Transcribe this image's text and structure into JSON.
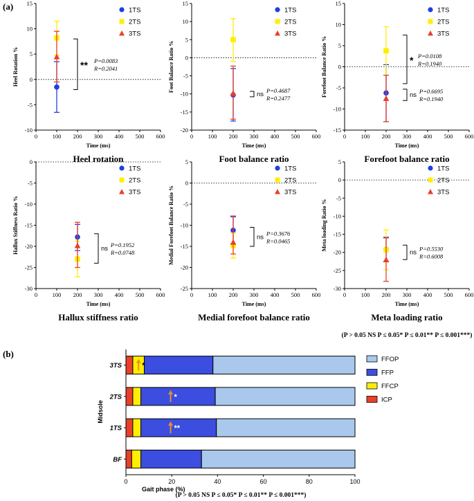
{
  "panel_a_label": "(a)",
  "panel_b_label": "(b)",
  "legend_series": [
    "1TS",
    "2TS",
    "3TS"
  ],
  "series_colors": {
    "1TS": "#1f3fe0",
    "2TS": "#ffee00",
    "3TS": "#e8402a"
  },
  "xaxis_title": "Time (ms)",
  "sig_note": "(P > 0.05 NS P ≤ 0.05* P ≤ 0.01** P ≤ 0.001***)",
  "chart_data": [
    {
      "type": "scatter",
      "title": "Heel rotation",
      "ylabel": "Heel Rotation  %",
      "xlabel": "Time (ms)",
      "xlim": [
        0,
        600
      ],
      "xticks": [
        0,
        100,
        200,
        300,
        400,
        500,
        600
      ],
      "ylim": [
        -10,
        15
      ],
      "yticks": [
        -10,
        -5,
        0,
        5,
        10,
        15
      ],
      "x": 100,
      "series": [
        {
          "name": "1TS",
          "mean": -1.5,
          "sd_low": -6.5,
          "sd_high": 3.5
        },
        {
          "name": "2TS",
          "mean": 8.2,
          "sd_low": 4.8,
          "sd_high": 11.5
        },
        {
          "name": "3TS",
          "mean": 4.5,
          "sd_low": -0.5,
          "sd_high": 9.5
        }
      ],
      "annotations": [
        {
          "label": "**",
          "from": -2,
          "to": 8,
          "p": "P=0.0083",
          "r": "R=0.2041"
        }
      ]
    },
    {
      "type": "scatter",
      "title": "Foot balance ratio",
      "ylabel": "Foot Balance Ratio %",
      "xlabel": "Time (ms)",
      "xlim": [
        0,
        600
      ],
      "xticks": [
        0,
        100,
        200,
        300,
        400,
        500,
        600
      ],
      "ylim": [
        -20,
        15
      ],
      "yticks": [
        -20,
        -15,
        -10,
        -5,
        0,
        5,
        10,
        15
      ],
      "x": 200,
      "series": [
        {
          "name": "1TS",
          "mean": -10.3,
          "sd_low": -17.5,
          "sd_high": -3
        },
        {
          "name": "2TS",
          "mean": 5,
          "sd_low": -1,
          "sd_high": 10.8
        },
        {
          "name": "3TS",
          "mean": -9.8,
          "sd_low": -17,
          "sd_high": -2.3
        }
      ],
      "annotations": [
        {
          "label": "ns",
          "from": -10.8,
          "to": -9.3,
          "p": "P=0.4687",
          "r": "R=0.2477"
        }
      ]
    },
    {
      "type": "scatter",
      "title": "Forefoot balance ratio",
      "ylabel": "Forefoot Balance Ratio %",
      "xlabel": "Time (ms)",
      "xlim": [
        0,
        600
      ],
      "xticks": [
        0,
        100,
        200,
        300,
        400,
        500,
        600
      ],
      "ylim": [
        -15,
        15
      ],
      "yticks": [
        -15,
        -10,
        -5,
        0,
        5,
        10,
        15
      ],
      "x": 200,
      "series": [
        {
          "name": "1TS",
          "mean": -6.2,
          "sd_low": -13,
          "sd_high": 0.5
        },
        {
          "name": "2TS",
          "mean": 3.8,
          "sd_low": -2,
          "sd_high": 9.5
        },
        {
          "name": "3TS",
          "mean": -7.5,
          "sd_low": -13,
          "sd_high": -2
        }
      ],
      "annotations": [
        {
          "label": "*",
          "from": -4,
          "to": 7.5,
          "p": "P=0.0108",
          "r": "R=0.1940"
        },
        {
          "label": "ns",
          "from": -8,
          "to": -5.3,
          "p": "P=0.6695",
          "r": "R=0.1940"
        }
      ]
    },
    {
      "type": "scatter",
      "title": "Hallux stiffness ratio",
      "ylabel": "Hallux Stiffness Ratio %",
      "xlabel": "Time (ms)",
      "xlim": [
        0,
        600
      ],
      "xticks": [
        0,
        100,
        200,
        300,
        400,
        500,
        600
      ],
      "ylim": [
        -30,
        0
      ],
      "yticks": [
        -30,
        -25,
        -20,
        -15,
        -10,
        -5,
        0
      ],
      "x": 200,
      "series": [
        {
          "name": "1TS",
          "mean": -17.8,
          "sd_low": -21,
          "sd_high": -14.8
        },
        {
          "name": "2TS",
          "mean": -23,
          "sd_low": -27.2,
          "sd_high": -18.8
        },
        {
          "name": "3TS",
          "mean": -19.8,
          "sd_low": -25,
          "sd_high": -14.3
        }
      ],
      "annotations": [
        {
          "label": "ns",
          "from": -24,
          "to": -17,
          "p": "P=0.1952",
          "r": "R=0.0748"
        }
      ]
    },
    {
      "type": "scatter",
      "title": "Medial forefoot balance ratio",
      "ylabel": "Medial Forefoot Balance Ratio %",
      "xlabel": "Time (ms)",
      "xlim": [
        0,
        600
      ],
      "xticks": [
        0,
        100,
        200,
        300,
        400,
        500,
        600
      ],
      "ylim": [
        -25,
        5
      ],
      "yticks": [
        -25,
        -20,
        -15,
        -10,
        -5,
        0,
        5
      ],
      "x": 200,
      "series": [
        {
          "name": "1TS",
          "mean": -11.2,
          "sd_low": -14.5,
          "sd_high": -8
        },
        {
          "name": "2TS",
          "mean": -14.8,
          "sd_low": -17.8,
          "sd_high": -11.8
        },
        {
          "name": "3TS",
          "mean": -14,
          "sd_low": -16.8,
          "sd_high": -7.8
        }
      ],
      "annotations": [
        {
          "label": "ns",
          "from": -15,
          "to": -10.5,
          "p": "P=0.3676",
          "r": "R=0.0465"
        }
      ]
    },
    {
      "type": "scatter",
      "title": "Meta loading ratio",
      "ylabel": "Meta loading Ratio %",
      "xlabel": "Time (ms)",
      "xlim": [
        0,
        600
      ],
      "xticks": [
        0,
        100,
        200,
        300,
        400,
        500,
        600
      ],
      "ylim": [
        -30,
        5
      ],
      "yticks": [
        -30,
        -25,
        -20,
        -15,
        -10,
        -5,
        0,
        5
      ],
      "x": 200,
      "series": [
        {
          "name": "1TS",
          "mean": -19.2,
          "sd_low": -22.5,
          "sd_high": -15.8
        },
        {
          "name": "2TS",
          "mean": -19.3,
          "sd_low": -24.8,
          "sd_high": -13.8
        },
        {
          "name": "3TS",
          "mean": -22,
          "sd_low": -28,
          "sd_high": -16
        }
      ],
      "annotations": [
        {
          "label": "ns",
          "from": -22,
          "to": -18,
          "p": "P=0.5530",
          "r": "R=0.6008"
        }
      ]
    },
    {
      "type": "bar",
      "orientation": "horizontal-stacked",
      "title": "",
      "xlabel": "Gait phase (%)",
      "ylabel": "Midsole",
      "xlim": [
        0,
        100
      ],
      "xticks": [
        0,
        20,
        40,
        60,
        80,
        100
      ],
      "categories": [
        "3TS",
        "2TS",
        "1TS",
        "BF"
      ],
      "segments": [
        "ICP",
        "FFCP",
        "FFP",
        "FFOP"
      ],
      "segment_colors": {
        "ICP": "#e8402a",
        "FFCP": "#ffee00",
        "FFP": "#3b4ee0",
        "FFOP": "#a9c8ec"
      },
      "legend_order": [
        "FFOP",
        "FFP",
        "FFCP",
        "ICP"
      ],
      "bars": [
        {
          "category": "3TS",
          "ICP": 3,
          "FFCP": 5,
          "FFP": 30,
          "FFOP": 62,
          "mark": "*"
        },
        {
          "category": "2TS",
          "ICP": 3,
          "FFCP": 3.5,
          "FFP": 32.5,
          "FFOP": 61,
          "mark": "*"
        },
        {
          "category": "1TS",
          "ICP": 3,
          "FFCP": 3.5,
          "FFP": 33,
          "FFOP": 60.5,
          "mark": "**"
        },
        {
          "category": "BF",
          "ICP": 2.5,
          "FFCP": 4,
          "FFP": 26.5,
          "FFOP": 67,
          "mark": ""
        }
      ]
    }
  ]
}
